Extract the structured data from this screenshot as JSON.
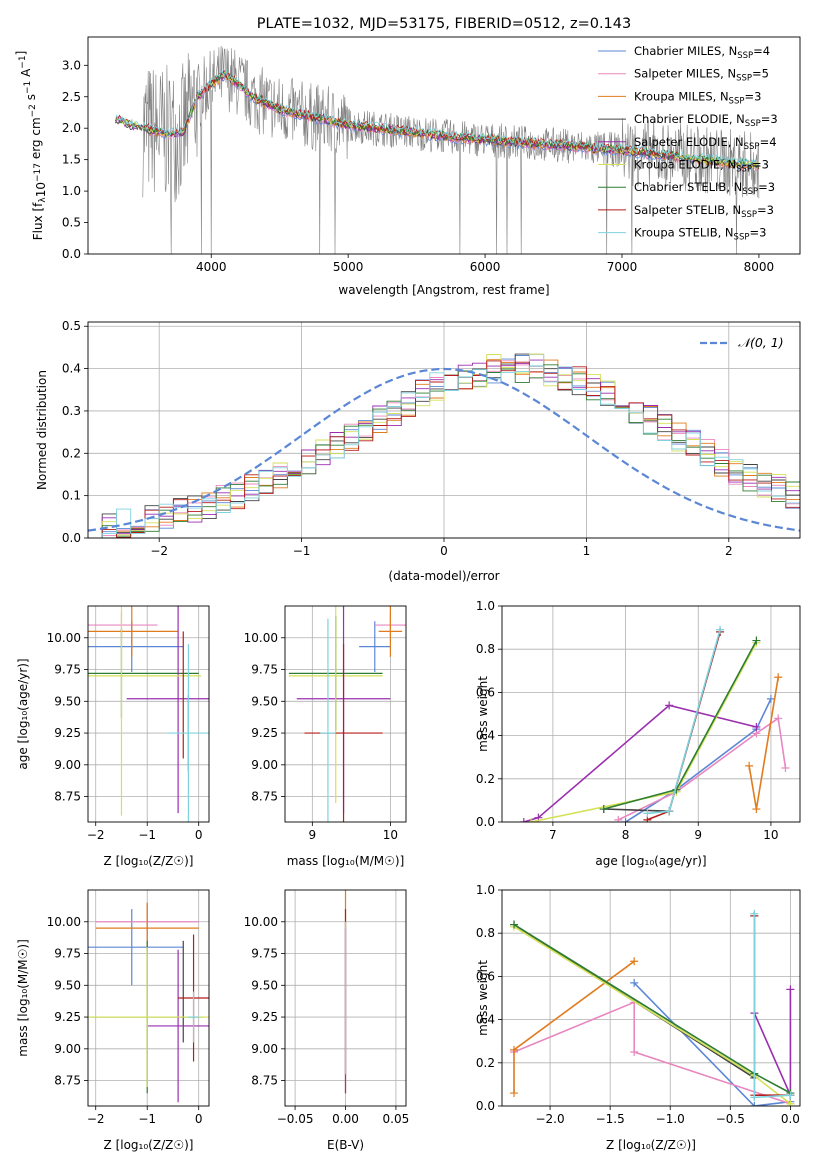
{
  "chart_data": [
    {
      "id": "spectrum",
      "type": "line",
      "title": "PLATE=1032, MJD=53175, FIBERID=0512, z=0.143",
      "xlabel": "wavelength [Angstrom, rest frame]",
      "ylabel": "Flux [f_λ 10^-17 erg cm^-2 s^-1 A^-1]",
      "xlim": [
        3100,
        8300
      ],
      "ylim": [
        0,
        3.45
      ],
      "xticks": [
        4000,
        5000,
        6000,
        7000,
        8000
      ],
      "yticks": [
        0.0,
        0.5,
        1.0,
        1.5,
        2.0,
        2.5,
        3.0
      ],
      "grid": false,
      "legend_position": "right",
      "legend": [
        {
          "text": "Chabrier MILES, N",
          "sub": "SSP",
          "tail": "=4",
          "color": "#5b87d6"
        },
        {
          "text": "Salpeter MILES, N",
          "sub": "SSP",
          "tail": "=5",
          "color": "#e887c0"
        },
        {
          "text": "Kroupa MILES, N",
          "sub": "SSP",
          "tail": "=3",
          "color": "#e07b1e"
        },
        {
          "text": "Chabrier ELODIE, N",
          "sub": "SSP",
          "tail": "=3",
          "color": "#444444"
        },
        {
          "text": "Salpeter ELODIE, N",
          "sub": "SSP",
          "tail": "=4",
          "color": "#9b2eb0"
        },
        {
          "text": "Kroupa ELODIE, N",
          "sub": "SSP",
          "tail": "=3",
          "color": "#d4e157"
        },
        {
          "text": "Chabrier STELIB, N",
          "sub": "SSP",
          "tail": "=3",
          "color": "#2e7d32"
        },
        {
          "text": "Salpeter STELIB, N",
          "sub": "SSP",
          "tail": "=3",
          "color": "#b71c1c"
        },
        {
          "text": "Kroupa STELIB, N",
          "sub": "SSP",
          "tail": "=3",
          "color": "#7fd3df"
        }
      ],
      "data_color": "#808080",
      "model_color": "#7fd3df",
      "model_points": {
        "x": [
          3300,
          3400,
          3500,
          3600,
          3700,
          3800,
          3900,
          4000,
          4100,
          4200,
          4300,
          4400,
          4500,
          4600,
          4700,
          4800,
          4900,
          5000,
          5200,
          5400,
          5600,
          5800,
          6000,
          6200,
          6400,
          6600,
          6800,
          7000,
          7200,
          7400,
          7600,
          7800,
          8000
        ],
        "y": [
          2.15,
          2.05,
          2.0,
          1.95,
          1.9,
          1.95,
          2.5,
          2.7,
          2.85,
          2.7,
          2.5,
          2.4,
          2.3,
          2.25,
          2.2,
          2.15,
          2.1,
          2.05,
          2.0,
          1.95,
          1.9,
          1.85,
          1.82,
          1.78,
          1.75,
          1.72,
          1.68,
          1.65,
          1.6,
          1.55,
          1.5,
          1.45,
          1.4
        ]
      }
    },
    {
      "id": "residuals",
      "type": "bar",
      "xlabel": "(data-model)/error",
      "ylabel": "Normed distribution",
      "xlim": [
        -2.5,
        2.5
      ],
      "ylim": [
        0,
        0.51
      ],
      "xticks": [
        -2,
        -1,
        0,
        1,
        2
      ],
      "yticks": [
        0.0,
        0.1,
        0.2,
        0.3,
        0.4,
        0.5
      ],
      "grid": true,
      "legend": [
        {
          "text": "𝒩(0, 1)",
          "color": "#5b87d6",
          "style": "dashed"
        }
      ],
      "legend_position": "top-right",
      "bin_width": 0.1,
      "bin_start": -2.5,
      "base_values": [
        0.03,
        0.03,
        0.035,
        0.04,
        0.045,
        0.05,
        0.06,
        0.07,
        0.08,
        0.09,
        0.1,
        0.115,
        0.13,
        0.15,
        0.165,
        0.18,
        0.2,
        0.22,
        0.24,
        0.26,
        0.28,
        0.3,
        0.32,
        0.34,
        0.36,
        0.37,
        0.38,
        0.39,
        0.4,
        0.4,
        0.4,
        0.4,
        0.39,
        0.38,
        0.37,
        0.36,
        0.34,
        0.32,
        0.3,
        0.28,
        0.26,
        0.24,
        0.22,
        0.2,
        0.18,
        0.16,
        0.145,
        0.13,
        0.115,
        0.1
      ]
    },
    {
      "id": "age_vs_Z",
      "type": "errorbar",
      "xlabel": "Z [log₁₀(Z/Z☉)]",
      "ylabel": "age  [log₁₀(age/yr)]",
      "xlim": [
        -2.15,
        0.2
      ],
      "ylim": [
        8.55,
        10.25
      ],
      "xticks": [
        -2,
        -1,
        0
      ],
      "yticks": [
        8.75,
        9.0,
        9.25,
        9.5,
        9.75,
        10.0
      ],
      "grid": true,
      "points": [
        {
          "x": -1.3,
          "xerr": 1.0,
          "y": 9.93,
          "yerr": 0.2,
          "color": "#5b87d6"
        },
        {
          "x": -1.5,
          "xerr": 0.7,
          "y": 10.1,
          "yerr": 0.1,
          "color": "#e887c0"
        },
        {
          "x": -1.3,
          "xerr": 0.9,
          "y": 10.05,
          "yerr": 0.2,
          "color": "#e07b1e"
        },
        {
          "x": -1.5,
          "xerr": 1.5,
          "y": 9.72,
          "yerr": 0.35,
          "color": "#2e7d32"
        },
        {
          "x": -0.2,
          "xerr": 0.0,
          "y": 9.25,
          "yerr": 0.3,
          "color": "#444444"
        },
        {
          "x": -0.4,
          "xerr": 1.0,
          "y": 9.52,
          "yerr": 0.9,
          "color": "#9b2eb0"
        },
        {
          "x": -1.5,
          "xerr": 1.55,
          "y": 9.7,
          "yerr": 1.1,
          "color": "#d4e157"
        },
        {
          "x": -0.3,
          "xerr": 0.0,
          "y": 9.55,
          "yerr": 0.5,
          "color": "#b71c1c"
        },
        {
          "x": -0.2,
          "xerr": 0.4,
          "y": 9.25,
          "yerr": 0.7,
          "color": "#7fd3df"
        }
      ]
    },
    {
      "id": "age_vs_mass",
      "type": "errorbar",
      "xlabel": "mass [log₁₀(M/M☉)]",
      "ylabel": "",
      "xlim": [
        8.65,
        10.2
      ],
      "ylim": [
        8.55,
        10.25
      ],
      "xticks": [
        9,
        10
      ],
      "yticks": [
        8.75,
        9.0,
        9.25,
        9.5,
        9.75,
        10.0
      ],
      "grid": true,
      "points": [
        {
          "x": 9.8,
          "xerr": 0.2,
          "y": 9.93,
          "yerr": 0.2,
          "color": "#5b87d6"
        },
        {
          "x": 10.0,
          "xerr": 0.2,
          "y": 10.1,
          "yerr": 0.1,
          "color": "#e887c0"
        },
        {
          "x": 10.0,
          "xerr": 0.15,
          "y": 10.05,
          "yerr": 0.2,
          "color": "#e07b1e"
        },
        {
          "x": 9.3,
          "xerr": 0.6,
          "y": 9.72,
          "yerr": 0.45,
          "color": "#2e7d32"
        },
        {
          "x": 9.4,
          "xerr": 0.6,
          "y": 9.52,
          "yerr": 0.9,
          "color": "#9b2eb0"
        },
        {
          "x": 9.3,
          "xerr": 0.6,
          "y": 9.7,
          "yerr": 1.0,
          "color": "#d4e157"
        },
        {
          "x": 9.4,
          "xerr": 0.5,
          "y": 9.25,
          "yerr": 0.7,
          "color": "#b71c1c"
        },
        {
          "x": 9.2,
          "xerr": 0.1,
          "y": 9.25,
          "yerr": 0.9,
          "color": "#7fd3df"
        }
      ]
    },
    {
      "id": "mass_weight_vs_age",
      "type": "line",
      "xlabel": "age  [log₁₀(age/yr)]",
      "ylabel": "mass weight",
      "xlim": [
        6.3,
        10.4
      ],
      "ylim": [
        0,
        1.0
      ],
      "xticks": [
        7,
        8,
        9,
        10
      ],
      "yticks": [
        0.0,
        0.2,
        0.4,
        0.6,
        0.8,
        1.0
      ],
      "grid": true,
      "series": [
        {
          "color": "#5b87d6",
          "x": [
            8.0,
            8.7,
            9.8,
            10.0
          ],
          "y": [
            0.0,
            0.15,
            0.43,
            0.57
          ]
        },
        {
          "color": "#e887c0",
          "x": [
            7.9,
            8.7,
            9.8,
            10.1,
            10.2
          ],
          "y": [
            0.01,
            0.14,
            0.41,
            0.48,
            0.25
          ]
        },
        {
          "color": "#e07b1e",
          "x": [
            9.7,
            9.8,
            10.1
          ],
          "y": [
            0.26,
            0.06,
            0.67
          ]
        },
        {
          "color": "#444444",
          "x": [
            7.7,
            8.6,
            9.3
          ],
          "y": [
            0.06,
            0.05,
            0.88
          ]
        },
        {
          "color": "#9b2eb0",
          "x": [
            6.6,
            6.8,
            8.6,
            9.8
          ],
          "y": [
            0.0,
            0.02,
            0.54,
            0.44
          ]
        },
        {
          "color": "#d4e157",
          "x": [
            6.7,
            8.7,
            9.8
          ],
          "y": [
            0.0,
            0.14,
            0.83
          ]
        },
        {
          "color": "#2e7d32",
          "x": [
            7.7,
            8.7,
            9.8
          ],
          "y": [
            0.06,
            0.15,
            0.84
          ]
        },
        {
          "color": "#b71c1c",
          "x": [
            8.3,
            8.6,
            9.3
          ],
          "y": [
            0.01,
            0.05,
            0.88
          ]
        },
        {
          "color": "#7fd3df",
          "x": [
            8.3,
            8.6,
            9.3
          ],
          "y": [
            0.04,
            0.05,
            0.89
          ]
        }
      ]
    },
    {
      "id": "mass_vs_Z",
      "type": "errorbar",
      "xlabel": "Z [log₁₀(Z/Z☉)]",
      "ylabel": "mass [log₁₀(M/M☉)]",
      "xlim": [
        -2.15,
        0.2
      ],
      "ylim": [
        8.55,
        10.25
      ],
      "xticks": [
        -2,
        -1,
        0
      ],
      "yticks": [
        8.75,
        9.0,
        9.25,
        9.5,
        9.75,
        10.0
      ],
      "grid": true,
      "points": [
        {
          "x": -1.3,
          "xerr": 1.0,
          "y": 9.8,
          "yerr": 0.3,
          "color": "#5b87d6"
        },
        {
          "x": -1.0,
          "xerr": 1.0,
          "y": 10.0,
          "yerr": 0.15,
          "color": "#e887c0"
        },
        {
          "x": -1.0,
          "xerr": 1.0,
          "y": 9.95,
          "yerr": 0.2,
          "color": "#e07b1e"
        },
        {
          "x": -1.0,
          "xerr": 1.1,
          "y": 9.25,
          "yerr": 0.6,
          "color": "#2e7d32"
        },
        {
          "x": -0.3,
          "xerr": 0.0,
          "y": 9.45,
          "yerr": 0.4,
          "color": "#444444"
        },
        {
          "x": -0.4,
          "xerr": 0.6,
          "y": 9.18,
          "yerr": 0.6,
          "color": "#9b2eb0"
        },
        {
          "x": -1.0,
          "xerr": 1.2,
          "y": 9.25,
          "yerr": 0.55,
          "color": "#d4e157"
        },
        {
          "x": -0.1,
          "xerr": 0.3,
          "y": 9.4,
          "yerr": 0.5,
          "color": "#b71c1c"
        },
        {
          "x": -0.1,
          "xerr": 0.1,
          "y": 9.25,
          "yerr": 0.2,
          "color": "#7fd3df"
        }
      ]
    },
    {
      "id": "mass_vs_EBV",
      "type": "errorbar",
      "xlabel": "E(B-V)",
      "ylabel": "",
      "xlim": [
        -0.06,
        0.06
      ],
      "ylim": [
        8.55,
        10.25
      ],
      "xticks": [
        -0.05,
        0.0,
        0.05
      ],
      "yticks": [
        8.75,
        9.0,
        9.25,
        9.5,
        9.75,
        10.0
      ],
      "grid": true,
      "points": [
        {
          "x": 0.0,
          "xerr": 0.0,
          "y": 9.45,
          "yerr": 0.8,
          "color": "#e07b1e"
        },
        {
          "x": 0.0,
          "xerr": 0.0,
          "y": 9.45,
          "yerr": 0.65,
          "color": "#b71c1c"
        },
        {
          "x": 0.0,
          "xerr": 0.0,
          "y": 9.3,
          "yerr": 0.65,
          "color": "#9b2eb0"
        },
        {
          "x": 0.0,
          "xerr": 0.0,
          "y": 9.4,
          "yerr": 0.6,
          "color": "#7fd3df"
        }
      ]
    },
    {
      "id": "mass_weight_vs_Z",
      "type": "line",
      "xlabel": "Z [log₁₀(Z/Z☉)]",
      "ylabel": "mass weight",
      "xlim": [
        -2.4,
        0.08
      ],
      "ylim": [
        0,
        1.0
      ],
      "xticks": [
        -2.0,
        -1.5,
        -1.0,
        -0.5,
        0.0
      ],
      "yticks": [
        0.0,
        0.2,
        0.4,
        0.6,
        0.8,
        1.0
      ],
      "grid": true,
      "series": [
        {
          "color": "#5b87d6",
          "x": [
            -1.3,
            -0.3,
            0.0
          ],
          "y": [
            0.57,
            0.0,
            0.02
          ]
        },
        {
          "color": "#e887c0",
          "x": [
            -2.3,
            -1.3,
            -1.3,
            0.0
          ],
          "y": [
            0.25,
            0.48,
            0.25,
            0.01
          ]
        },
        {
          "color": "#e07b1e",
          "x": [
            -2.3,
            -2.3,
            -1.3
          ],
          "y": [
            0.06,
            0.26,
            0.67
          ]
        },
        {
          "color": "#444444",
          "x": [
            -2.3,
            -0.3,
            -0.3
          ],
          "y": [
            0.84,
            0.13,
            0.88
          ]
        },
        {
          "color": "#9b2eb0",
          "x": [
            -0.3,
            0.0,
            0.0
          ],
          "y": [
            0.43,
            0.05,
            0.54
          ]
        },
        {
          "color": "#d4e157",
          "x": [
            -2.3,
            -0.3,
            0.0
          ],
          "y": [
            0.83,
            0.14,
            0.01
          ]
        },
        {
          "color": "#2e7d32",
          "x": [
            -2.3,
            -0.3,
            0.0
          ],
          "y": [
            0.84,
            0.15,
            0.06
          ]
        },
        {
          "color": "#b71c1c",
          "x": [
            -0.3,
            -0.3,
            0.0
          ],
          "y": [
            0.88,
            0.05,
            0.05
          ]
        },
        {
          "color": "#7fd3df",
          "x": [
            -0.3,
            -0.3,
            0.0
          ],
          "y": [
            0.89,
            0.04,
            0.05
          ]
        }
      ]
    }
  ]
}
